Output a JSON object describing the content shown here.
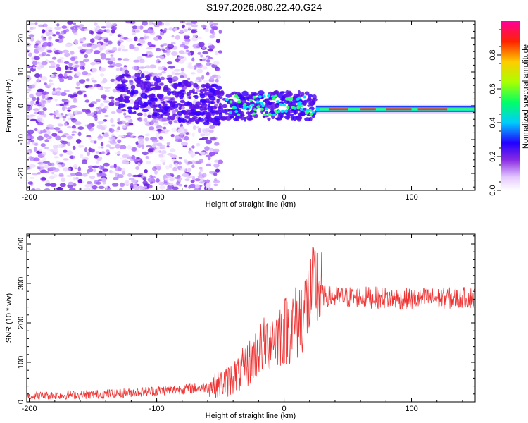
{
  "title": "S197.2026.080.22.40.G24",
  "chart_data": [
    {
      "type": "heatmap",
      "xlabel": "Height of straight line (km)",
      "ylabel": "Frequency (Hz)",
      "xlim": [
        -202,
        150
      ],
      "ylim": [
        -25,
        25
      ],
      "xticks": [
        -200,
        -100,
        0,
        100
      ],
      "yticks": [
        -20,
        -10,
        0,
        10,
        20
      ],
      "colorbar": {
        "label": "Normalized spectral amplitude",
        "ticks": [
          0.0,
          0.2,
          0.4,
          0.6,
          0.8
        ],
        "range": [
          0,
          1
        ],
        "colormap": "white-purple-blue-cyan-green-yellow-red-magenta"
      },
      "description_of_features": {
        "scatter_region_x": [
          -202,
          -45
        ],
        "signal_band_x": [
          -45,
          150
        ],
        "signal_band_frequency_hz": 0
      }
    },
    {
      "type": "line",
      "xlabel": "Height of straight line (km)",
      "ylabel": "SNR (10 * v/v)",
      "xlim": [
        -202,
        150
      ],
      "ylim": [
        0,
        425
      ],
      "xticks": [
        -200,
        -100,
        0,
        100
      ],
      "yticks": [
        0,
        100,
        200,
        300,
        400
      ],
      "color": "#ee3333",
      "series": [
        {
          "x": [
            -200,
            -180,
            -160,
            -140,
            -120,
            -100,
            -80,
            -60,
            -50,
            -40,
            -30,
            -20,
            -10,
            0,
            10,
            20,
            25,
            30,
            40,
            60,
            80,
            100,
            120,
            140,
            150
          ],
          "values": [
            15,
            17,
            18,
            20,
            24,
            28,
            32,
            38,
            45,
            60,
            90,
            130,
            160,
            180,
            200,
            260,
            300,
            270,
            265,
            265,
            263,
            260,
            262,
            263,
            265
          ]
        }
      ]
    }
  ]
}
